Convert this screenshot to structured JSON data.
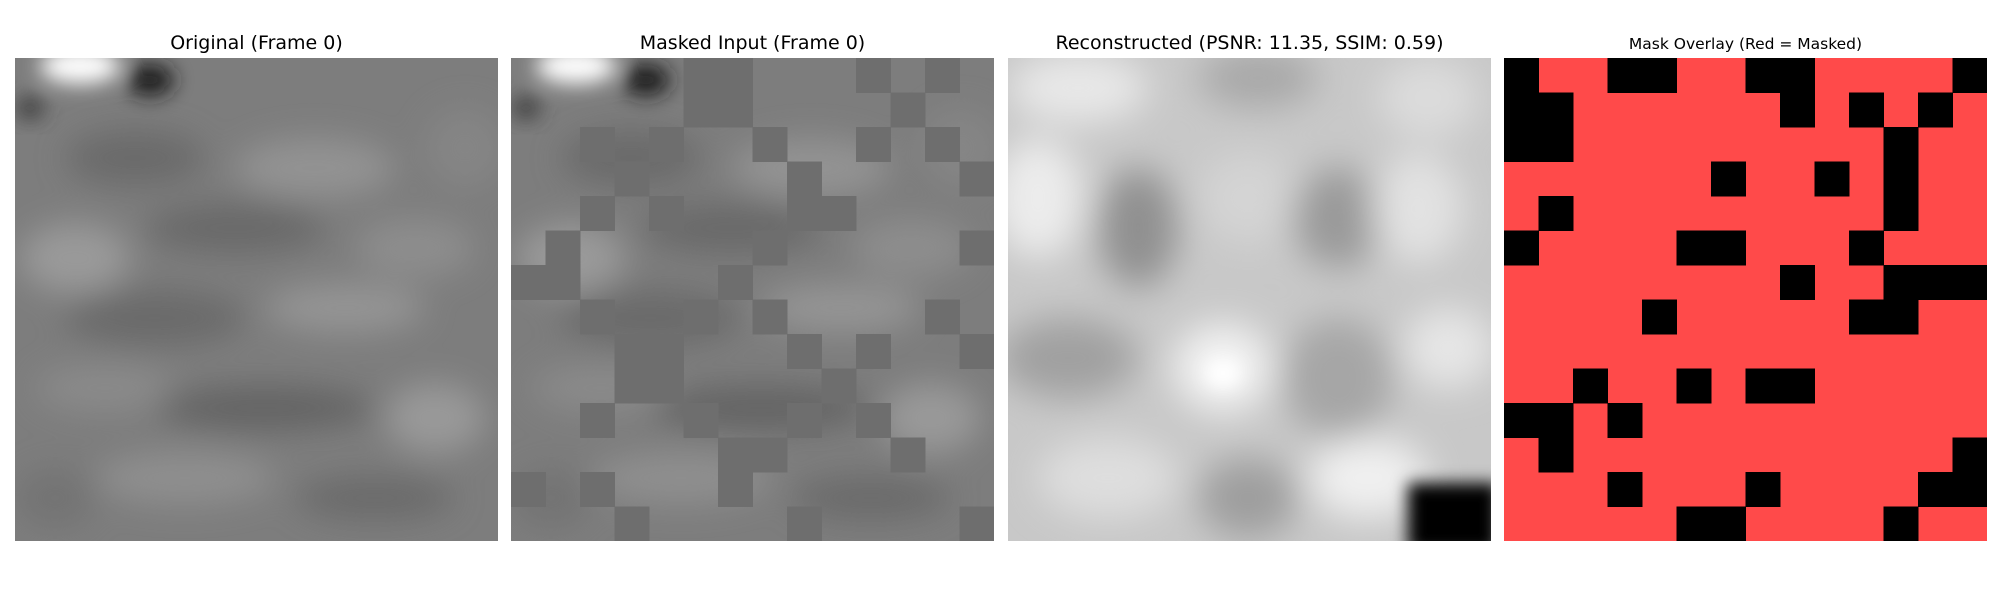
{
  "panels": [
    {
      "title": "Original (Frame 0)"
    },
    {
      "title": "Masked Input (Frame 0)"
    },
    {
      "title": "Reconstructed (PSNR: 11.35, SSIM: 0.59)"
    },
    {
      "title": "Mask Overlay (Red = Masked)"
    }
  ],
  "grid_size": 14,
  "colors": {
    "masked_red": "#ff4a4a",
    "visible": "#000000",
    "mask_fill_gray": "#6e6e6e"
  },
  "visible_patches": [
    [
      0,
      0
    ],
    [
      0,
      3
    ],
    [
      0,
      4
    ],
    [
      0,
      7
    ],
    [
      0,
      8
    ],
    [
      0,
      13
    ],
    [
      1,
      0
    ],
    [
      1,
      1
    ],
    [
      1,
      8
    ],
    [
      1,
      10
    ],
    [
      1,
      12
    ],
    [
      2,
      0
    ],
    [
      2,
      1
    ],
    [
      2,
      11
    ],
    [
      3,
      6
    ],
    [
      3,
      9
    ],
    [
      3,
      11
    ],
    [
      4,
      1
    ],
    [
      4,
      11
    ],
    [
      5,
      0
    ],
    [
      5,
      5
    ],
    [
      5,
      6
    ],
    [
      5,
      10
    ],
    [
      6,
      8
    ],
    [
      6,
      11
    ],
    [
      6,
      12
    ],
    [
      6,
      13
    ],
    [
      7,
      4
    ],
    [
      7,
      10
    ],
    [
      7,
      11
    ],
    [
      9,
      2
    ],
    [
      9,
      5
    ],
    [
      9,
      7
    ],
    [
      9,
      8
    ],
    [
      10,
      0
    ],
    [
      10,
      1
    ],
    [
      10,
      3
    ],
    [
      11,
      1
    ],
    [
      11,
      13
    ],
    [
      12,
      3
    ],
    [
      12,
      7
    ],
    [
      12,
      12
    ],
    [
      12,
      13
    ],
    [
      13,
      5
    ],
    [
      13,
      6
    ],
    [
      13,
      11
    ]
  ]
}
